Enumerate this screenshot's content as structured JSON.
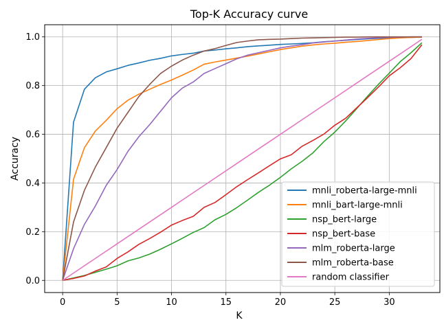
{
  "chart_data": {
    "type": "line",
    "title": "Top-K Accuracy curve",
    "xlabel": "K",
    "ylabel": "Accuracy",
    "xlim": [
      -1.65,
      34.65
    ],
    "ylim": [
      -0.05,
      1.05
    ],
    "xticks": [
      0,
      5,
      10,
      15,
      20,
      25,
      30
    ],
    "yticks": [
      0.0,
      0.2,
      0.4,
      0.6,
      0.8,
      1.0
    ],
    "xtick_labels": [
      "0",
      "5",
      "10",
      "15",
      "20",
      "25",
      "30"
    ],
    "ytick_labels": [
      "0.0",
      "0.2",
      "0.4",
      "0.6",
      "0.8",
      "1.0"
    ],
    "grid": true,
    "legend_position": "lower-right",
    "x": [
      0,
      1,
      2,
      3,
      4,
      5,
      6,
      7,
      8,
      9,
      10,
      11,
      12,
      13,
      14,
      15,
      16,
      17,
      18,
      19,
      20,
      21,
      22,
      23,
      24,
      25,
      26,
      27,
      28,
      29,
      30,
      31,
      32,
      33
    ],
    "series": [
      {
        "name": "mnli_roberta-large-mnli",
        "color": "#1f77b4",
        "values": [
          0.0,
          0.65,
          0.785,
          0.832,
          0.856,
          0.869,
          0.883,
          0.893,
          0.904,
          0.912,
          0.922,
          0.928,
          0.933,
          0.942,
          0.946,
          0.951,
          0.955,
          0.96,
          0.963,
          0.966,
          0.969,
          0.971,
          0.973,
          0.976,
          0.98,
          0.983,
          0.986,
          0.989,
          0.992,
          0.994,
          0.996,
          0.997,
          0.998,
          0.999
        ]
      },
      {
        "name": "mnli_bart-large-mnli",
        "color": "#ff7f0e",
        "values": [
          0.0,
          0.415,
          0.545,
          0.613,
          0.657,
          0.705,
          0.74,
          0.765,
          0.785,
          0.805,
          0.823,
          0.843,
          0.864,
          0.888,
          0.897,
          0.905,
          0.913,
          0.921,
          0.93,
          0.939,
          0.948,
          0.955,
          0.962,
          0.967,
          0.971,
          0.974,
          0.978,
          0.981,
          0.985,
          0.989,
          0.993,
          0.996,
          0.998,
          0.999
        ]
      },
      {
        "name": "nsp_bert-large",
        "color": "#2ca02c",
        "values": [
          0.0,
          0.01,
          0.02,
          0.033,
          0.046,
          0.06,
          0.08,
          0.092,
          0.108,
          0.128,
          0.15,
          0.173,
          0.197,
          0.217,
          0.249,
          0.271,
          0.299,
          0.33,
          0.362,
          0.391,
          0.423,
          0.458,
          0.489,
          0.524,
          0.57,
          0.609,
          0.655,
          0.705,
          0.756,
          0.805,
          0.851,
          0.898,
          0.935,
          0.976
        ]
      },
      {
        "name": "nsp_bert-base",
        "color": "#d62728",
        "values": [
          0.0,
          0.008,
          0.018,
          0.038,
          0.055,
          0.09,
          0.117,
          0.148,
          0.172,
          0.198,
          0.227,
          0.246,
          0.263,
          0.3,
          0.32,
          0.352,
          0.385,
          0.414,
          0.442,
          0.471,
          0.499,
          0.516,
          0.551,
          0.575,
          0.601,
          0.637,
          0.666,
          0.708,
          0.75,
          0.794,
          0.84,
          0.873,
          0.911,
          0.968
        ]
      },
      {
        "name": "mlm_roberta-large",
        "color": "#9467bd",
        "values": [
          0.0,
          0.13,
          0.23,
          0.305,
          0.39,
          0.455,
          0.53,
          0.59,
          0.64,
          0.695,
          0.75,
          0.79,
          0.815,
          0.85,
          0.87,
          0.89,
          0.91,
          0.925,
          0.935,
          0.945,
          0.955,
          0.962,
          0.968,
          0.975,
          0.979,
          0.983,
          0.987,
          0.991,
          0.994,
          0.996,
          0.998,
          0.999,
          1.0,
          1.0
        ]
      },
      {
        "name": "mlm_roberta-base",
        "color": "#8c564b",
        "values": [
          0.0,
          0.24,
          0.37,
          0.465,
          0.545,
          0.625,
          0.69,
          0.755,
          0.805,
          0.85,
          0.88,
          0.905,
          0.925,
          0.942,
          0.952,
          0.965,
          0.977,
          0.983,
          0.988,
          0.99,
          0.991,
          0.993,
          0.995,
          0.996,
          0.997,
          0.998,
          0.999,
          0.999,
          1.0,
          1.0,
          1.0,
          1.0,
          1.0,
          1.0
        ]
      },
      {
        "name": "random classifier",
        "color": "#e377c2",
        "values": [
          0.0,
          0.03,
          0.06,
          0.09,
          0.12,
          0.15,
          0.18,
          0.21,
          0.24,
          0.27,
          0.3,
          0.33,
          0.36,
          0.39,
          0.42,
          0.45,
          0.48,
          0.51,
          0.54,
          0.57,
          0.6,
          0.63,
          0.66,
          0.69,
          0.72,
          0.75,
          0.78,
          0.81,
          0.84,
          0.87,
          0.9,
          0.93,
          0.96,
          0.99
        ]
      }
    ]
  }
}
